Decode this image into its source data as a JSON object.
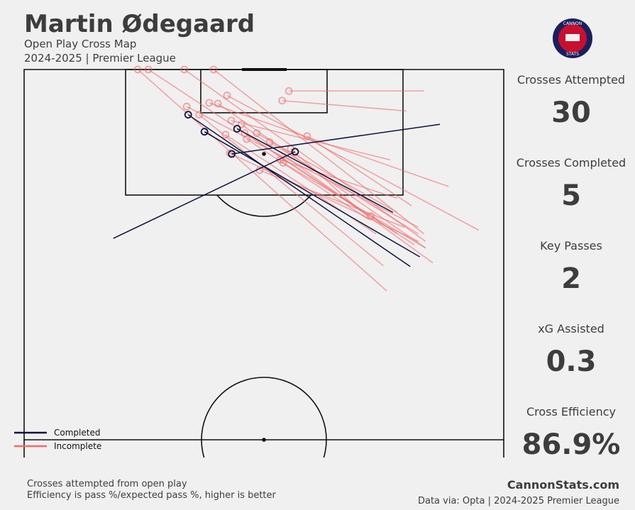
{
  "title": "Martin Ødegaard",
  "subtitle": "Open Play Cross Map",
  "season": "2024-2025 | Premier League",
  "logo": {
    "top": "CANNON",
    "bottom": "STATS"
  },
  "chart_data": {
    "type": "cross_map",
    "xlim": [
      0,
      100
    ],
    "ylim": [
      50,
      100
    ],
    "series": [
      {
        "name": "Completed",
        "color": "#0b1340",
        "x": [
          80.5,
          82.5,
          76.9,
          86.7,
          18.6
        ],
        "y": [
          73.4,
          74.7,
          80.7,
          92.6,
          77.2
        ],
        "end_x": [
          34.2,
          37.6,
          44.4,
          43.3,
          56.5
        ],
        "end_y": [
          93.9,
          91.6,
          92.0,
          88.6,
          88.9
        ]
      },
      {
        "name": "Incomplete",
        "color": "#f26b6b",
        "x": [
          83.4,
          79.7,
          75.6,
          81.4,
          83.7,
          83.4,
          94.8,
          88.5,
          83.7,
          82.2,
          74.9,
          76.3,
          71.9,
          77.8,
          80.8,
          73.4,
          71.9,
          83.7,
          79.3,
          82.2,
          77.8,
          85.2,
          68.9,
          82.2,
          77.8
        ],
        "y": [
          97.1,
          94.4,
          70.1,
          76.3,
          76.8,
          77.8,
          78.3,
          84.2,
          75.9,
          78.7,
          73.5,
          87.8,
          80.2,
          80.7,
          81.6,
          77.8,
          79.7,
          75.9,
          78.7,
          76.8,
          77.8,
          73.9,
          81.6,
          77.8,
          82.6
        ],
        "end_x": [
          55.2,
          53.8,
          23.7,
          25.9,
          33.4,
          39.5,
          42.3,
          38.6,
          40.4,
          33.9,
          36.5,
          43.2,
          46.0,
          48.5,
          59.0,
          42.0,
          46.4,
          54.0,
          49.1,
          42.9,
          72.3,
          45.3,
          55.6,
          51.2,
          53.4
        ],
        "end_y": [
          97.1,
          95.8,
          100,
          100,
          100,
          100,
          96.5,
          95.5,
          95.4,
          95.0,
          93.9,
          93.1,
          91.4,
          91.4,
          91.0,
          91.2,
          90.6,
          87.4,
          86.4,
          88.7,
          80.2,
          92.6,
          89.3,
          90.2,
          87.8
        ]
      }
    ]
  },
  "stats": [
    {
      "label": "Crosses Attempted",
      "value": "30"
    },
    {
      "label": "Crosses Completed",
      "value": "5"
    },
    {
      "label": "Key Passes",
      "value": "2"
    },
    {
      "label": "xG Assisted",
      "value": "0.3"
    },
    {
      "label": "Cross Efficiency",
      "value": "86.9%"
    }
  ],
  "notes": [
    "Crosses attempted from open play",
    "Efficiency is pass %/expected pass %, higher is better"
  ],
  "brand": "CannonStats.com",
  "source": "Data via: Opta | 2024-2025 Premier League"
}
